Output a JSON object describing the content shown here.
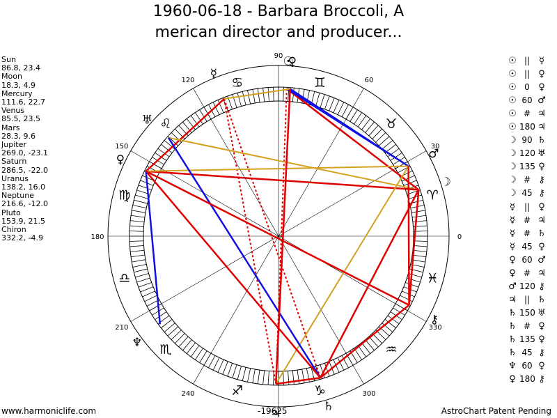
{
  "title": {
    "line1": "1960-06-18 - Barbara Broccoli, A",
    "line2": "merican director and producer..."
  },
  "planets": [
    {
      "name": "Sun",
      "values": "86.8, 23.4"
    },
    {
      "name": "Moon",
      "values": "18.3, 4.9"
    },
    {
      "name": "Mercury",
      "values": "111.6, 22.7"
    },
    {
      "name": "Venus",
      "values": "85.5, 23.5"
    },
    {
      "name": "Mars",
      "values": "28.3, 9.6"
    },
    {
      "name": "Jupiter",
      "values": "269.0, -23.1"
    },
    {
      "name": "Saturn",
      "values": "286.5, -22.0"
    },
    {
      "name": "Uranus",
      "values": "138.2, 16.0"
    },
    {
      "name": "Neptune",
      "values": "216.6, -12.0"
    },
    {
      "name": "Pluto",
      "values": "153.9, 21.5"
    },
    {
      "name": "Chiron",
      "values": "332.2, -4.9"
    }
  ],
  "aspects": [
    {
      "p1": "☉",
      "aspect": "||",
      "p2": "☿"
    },
    {
      "p1": "☉",
      "aspect": "||",
      "p2": "♀"
    },
    {
      "p1": "☉",
      "aspect": "0",
      "p2": "♀"
    },
    {
      "p1": "☉",
      "aspect": "60",
      "p2": "♂"
    },
    {
      "p1": "☉",
      "aspect": "#",
      "p2": "♃"
    },
    {
      "p1": "☉",
      "aspect": "180",
      "p2": "♃"
    },
    {
      "p1": "☽",
      "aspect": "90",
      "p2": "♄"
    },
    {
      "p1": "☽",
      "aspect": "120",
      "p2": "♅"
    },
    {
      "p1": "☽",
      "aspect": "135",
      "p2": "♀"
    },
    {
      "p1": "☽",
      "aspect": "#",
      "p2": "⚷"
    },
    {
      "p1": "☽",
      "aspect": "45",
      "p2": "⚷"
    },
    {
      "p1": "☿",
      "aspect": "||",
      "p2": "♀"
    },
    {
      "p1": "☿",
      "aspect": "#",
      "p2": "♃"
    },
    {
      "p1": "☿",
      "aspect": "#",
      "p2": "♄"
    },
    {
      "p1": "☿",
      "aspect": "45",
      "p2": "♀"
    },
    {
      "p1": "♀",
      "aspect": "60",
      "p2": "♂"
    },
    {
      "p1": "♀",
      "aspect": "#",
      "p2": "♃"
    },
    {
      "p1": "♂",
      "aspect": "120",
      "p2": "⚷"
    },
    {
      "p1": "♃",
      "aspect": "||",
      "p2": "♄"
    },
    {
      "p1": "♄",
      "aspect": "150",
      "p2": "♅"
    },
    {
      "p1": "♄",
      "aspect": "#",
      "p2": "♀"
    },
    {
      "p1": "♄",
      "aspect": "135",
      "p2": "♀"
    },
    {
      "p1": "♄",
      "aspect": "45",
      "p2": "⚷"
    },
    {
      "p1": "♆",
      "aspect": "60",
      "p2": "♀"
    },
    {
      "p1": "♀",
      "aspect": "180",
      "p2": "⚷"
    }
  ],
  "wheel": {
    "degree_labels": [
      {
        "angle": 0,
        "text": "0"
      },
      {
        "angle": 30,
        "text": "30"
      },
      {
        "angle": 60,
        "text": "60"
      },
      {
        "angle": 90,
        "text": "90"
      },
      {
        "angle": 120,
        "text": "120"
      },
      {
        "angle": 150,
        "text": "150"
      },
      {
        "angle": 180,
        "text": "180"
      },
      {
        "angle": 210,
        "text": "210"
      },
      {
        "angle": 240,
        "text": "240"
      },
      {
        "angle": 300,
        "text": "300"
      },
      {
        "angle": 330,
        "text": "330"
      }
    ],
    "bottom_label": "-19625",
    "signs": [
      {
        "angle": 15,
        "glyph": "♈"
      },
      {
        "angle": 45,
        "glyph": "♉"
      },
      {
        "angle": 75,
        "glyph": "♊"
      },
      {
        "angle": 105,
        "glyph": "♋"
      },
      {
        "angle": 135,
        "glyph": "♌"
      },
      {
        "angle": 165,
        "glyph": "♍"
      },
      {
        "angle": 195,
        "glyph": "♎"
      },
      {
        "angle": 225,
        "glyph": "♏"
      },
      {
        "angle": 255,
        "glyph": "♐"
      },
      {
        "angle": 285,
        "glyph": "♑"
      },
      {
        "angle": 315,
        "glyph": "♒"
      },
      {
        "angle": 345,
        "glyph": "♓"
      }
    ],
    "planet_glyphs": [
      {
        "angle": 86.8,
        "glyph": "☉"
      },
      {
        "angle": 18.3,
        "glyph": "☽"
      },
      {
        "angle": 111.6,
        "glyph": "☿"
      },
      {
        "angle": 85.5,
        "glyph": "♀"
      },
      {
        "angle": 28.3,
        "glyph": "♂"
      },
      {
        "angle": 269.0,
        "glyph": "♃"
      },
      {
        "angle": 286.5,
        "glyph": "♄"
      },
      {
        "angle": 138.2,
        "glyph": "♅"
      },
      {
        "angle": 216.6,
        "glyph": "♆"
      },
      {
        "angle": 153.9,
        "glyph": "♀"
      },
      {
        "angle": 332.2,
        "glyph": "⚷"
      }
    ],
    "aspect_lines": [
      {
        "a1": 86.8,
        "a2": 18.3,
        "color": "#e00000",
        "style": "solid"
      },
      {
        "a1": 86.8,
        "a2": 28.3,
        "color": "#1010e0",
        "style": "solid"
      },
      {
        "a1": 85.5,
        "a2": 28.3,
        "color": "#1010e0",
        "style": "solid"
      },
      {
        "a1": 86.8,
        "a2": 269.0,
        "color": "#e00000",
        "style": "dotted"
      },
      {
        "a1": 85.5,
        "a2": 269.0,
        "color": "#e00000",
        "style": "dotted"
      },
      {
        "a1": 111.6,
        "a2": 269.0,
        "color": "#e00000",
        "style": "dotted"
      },
      {
        "a1": 111.6,
        "a2": 286.5,
        "color": "#e00000",
        "style": "dotted"
      },
      {
        "a1": 111.6,
        "a2": 85.5,
        "color": "#d4a020",
        "style": "solid"
      },
      {
        "a1": 111.6,
        "a2": 153.9,
        "color": "#e00000",
        "style": "solid"
      },
      {
        "a1": 18.3,
        "a2": 286.5,
        "color": "#e00000",
        "style": "solid"
      },
      {
        "a1": 18.3,
        "a2": 138.2,
        "color": "#d4a020",
        "style": "solid"
      },
      {
        "a1": 18.3,
        "a2": 153.9,
        "color": "#e00000",
        "style": "solid"
      },
      {
        "a1": 18.3,
        "a2": 332.2,
        "color": "#e00000",
        "style": "solid"
      },
      {
        "a1": 28.3,
        "a2": 269.0,
        "color": "#d4a020",
        "style": "solid"
      },
      {
        "a1": 28.3,
        "a2": 153.9,
        "color": "#d4a020",
        "style": "solid"
      },
      {
        "a1": 28.3,
        "a2": 332.2,
        "color": "#e00000",
        "style": "solid"
      },
      {
        "a1": 269.0,
        "a2": 286.5,
        "color": "#e00000",
        "style": "solid"
      },
      {
        "a1": 286.5,
        "a2": 138.2,
        "color": "#1010e0",
        "style": "solid"
      },
      {
        "a1": 286.5,
        "a2": 153.9,
        "color": "#e00000",
        "style": "solid"
      },
      {
        "a1": 286.5,
        "a2": 332.2,
        "color": "#e00000",
        "style": "solid"
      },
      {
        "a1": 216.6,
        "a2": 153.9,
        "color": "#1010e0",
        "style": "solid"
      },
      {
        "a1": 153.9,
        "a2": 332.2,
        "color": "#e00000",
        "style": "solid"
      },
      {
        "a1": 269.0,
        "a2": 85.5,
        "color": "#e00000",
        "style": "solid"
      }
    ]
  },
  "footer": {
    "left": "www.harmoniclife.com",
    "right": "AstroChart Patent Pending"
  }
}
